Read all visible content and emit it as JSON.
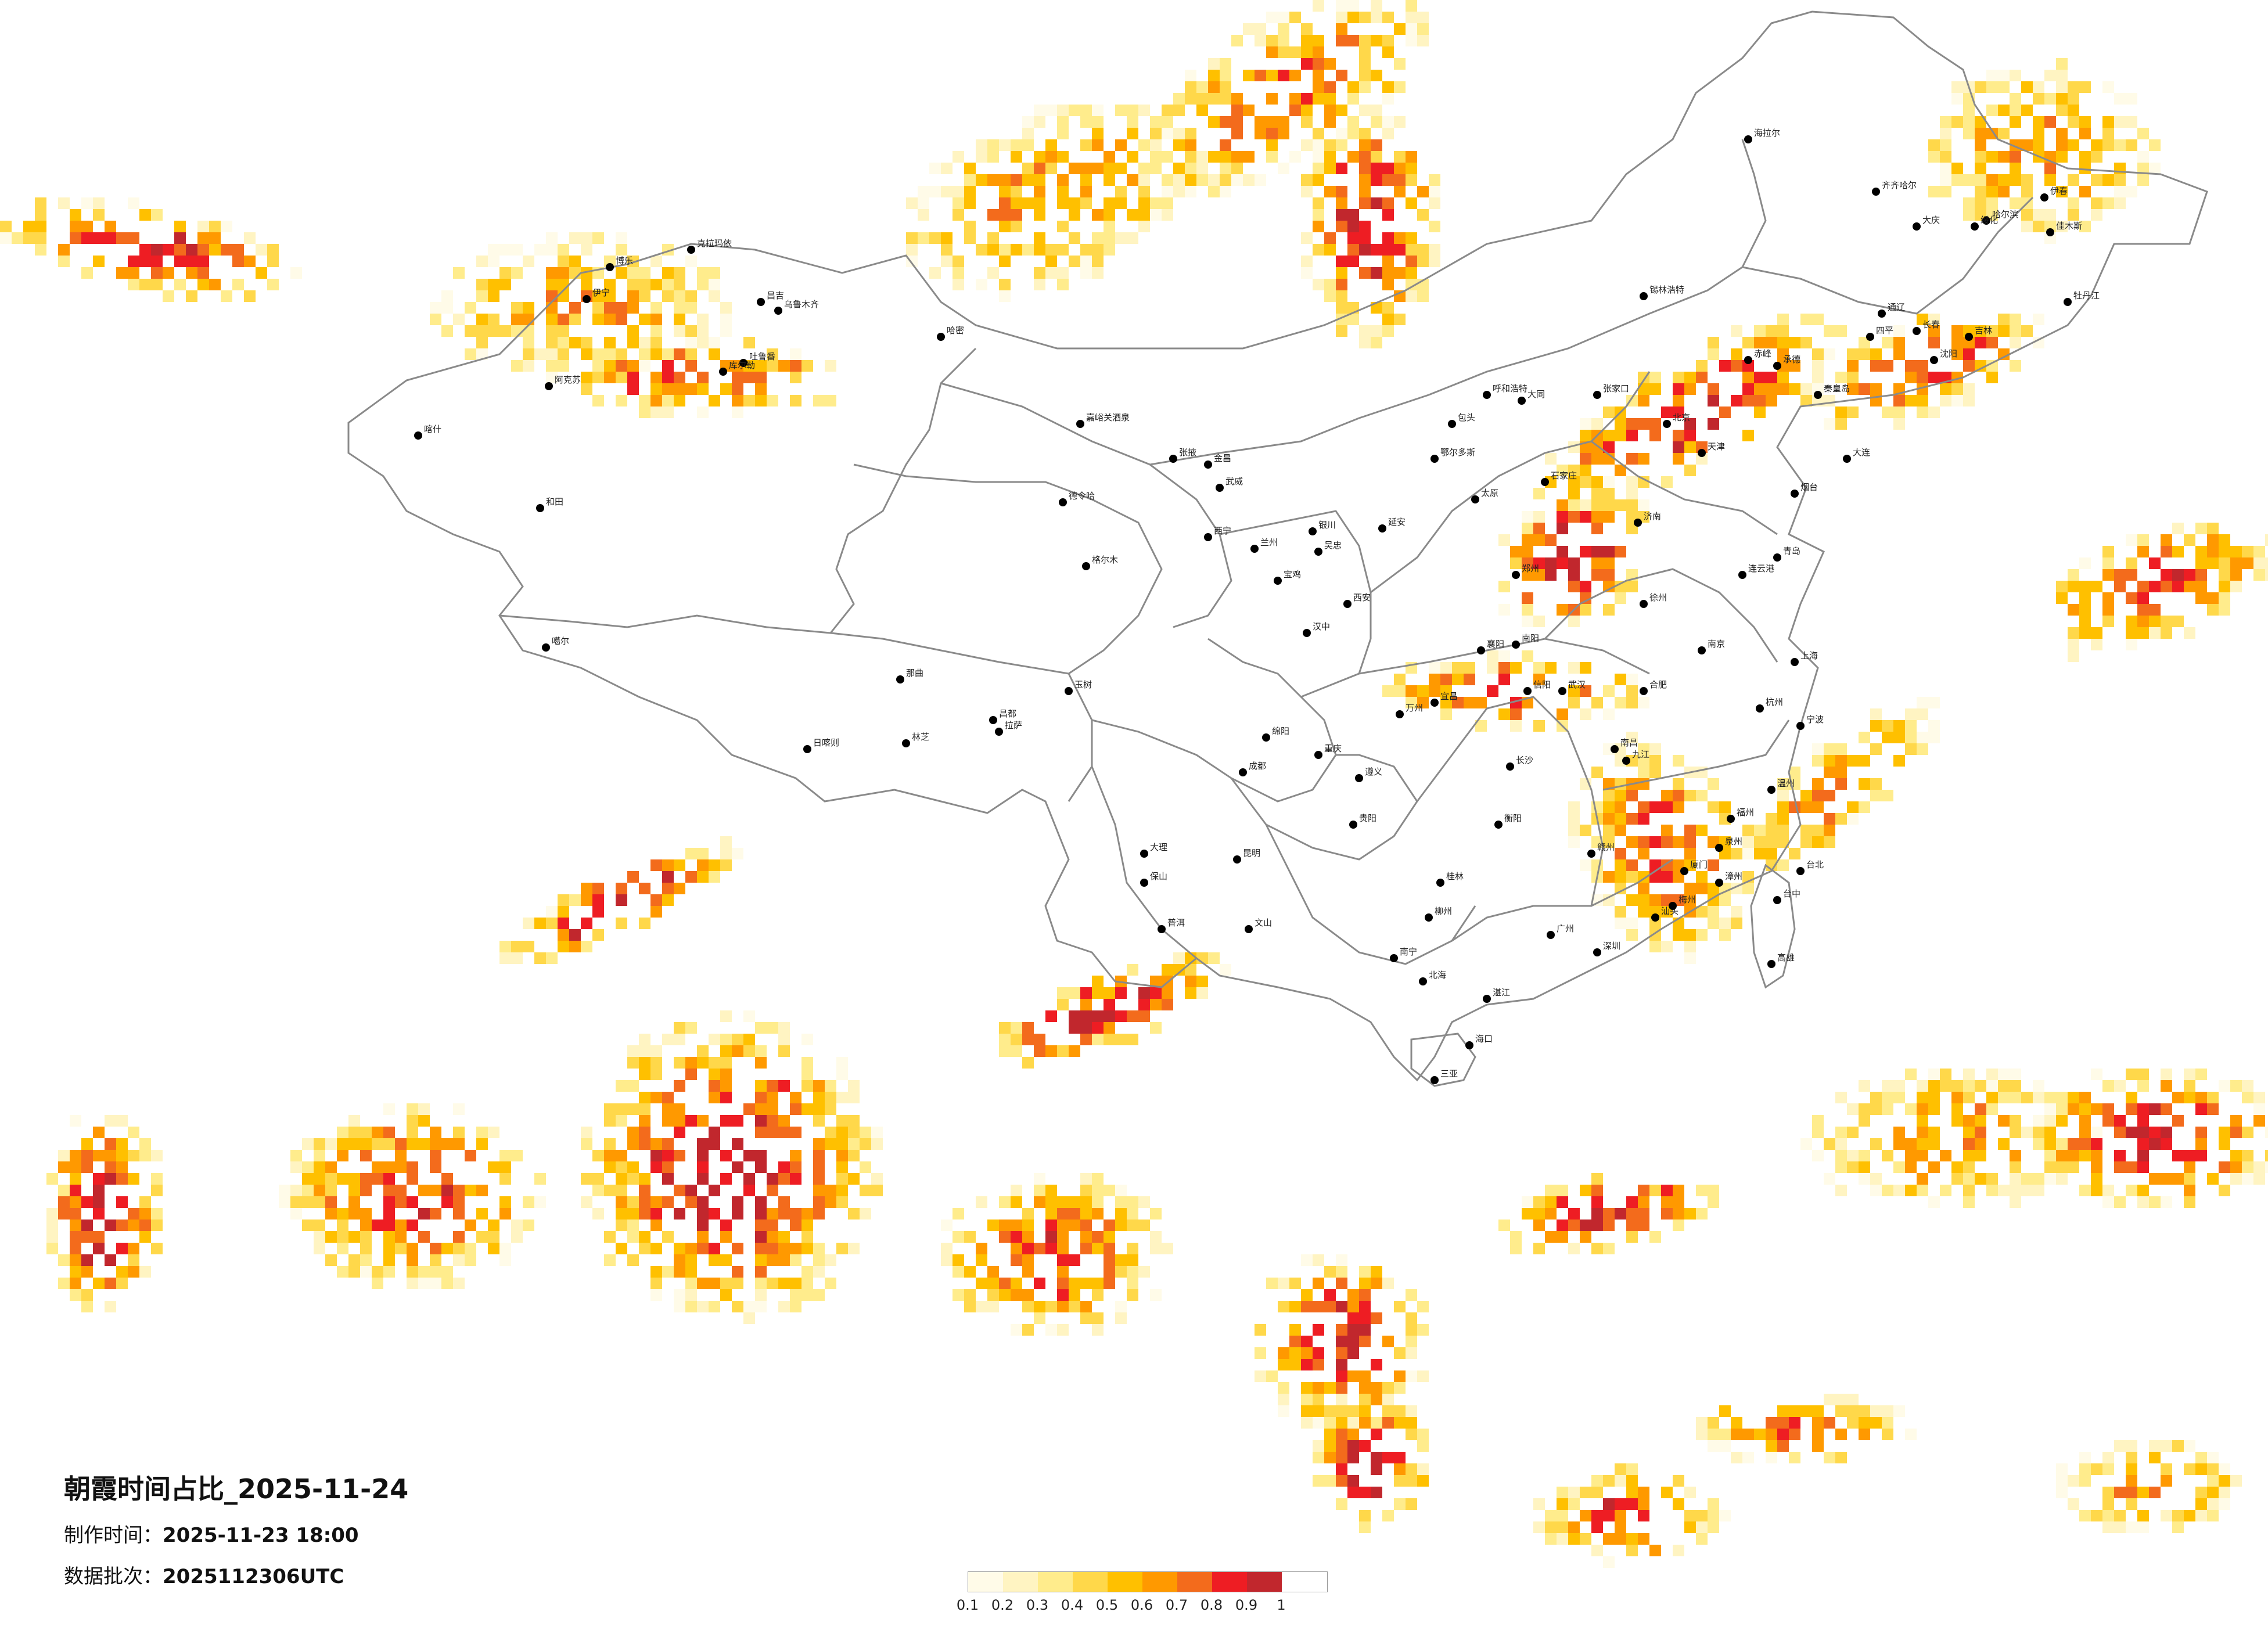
{
  "header": {
    "title": "朝霞时间占比_2025-11-24",
    "made_label": "制作时间：",
    "made_value": "2025-11-23 18:00",
    "batch_label": "数据批次：",
    "batch_value": "2025112306UTC"
  },
  "legend": {
    "colors": [
      "#fffbe8",
      "#fff4c2",
      "#ffec8c",
      "#ffd84a",
      "#ffc000",
      "#ff9900",
      "#f36b1c",
      "#ee1d23",
      "#c1272d"
    ],
    "ticks": [
      "0.1",
      "0.2",
      "0.3",
      "0.4",
      "0.5",
      "0.6",
      "0.7",
      "0.8",
      "0.9",
      "1"
    ]
  },
  "cities": [
    {
      "name": "克拉玛依"
    },
    {
      "name": "博乐"
    },
    {
      "name": "伊宁"
    },
    {
      "name": "昌吉"
    },
    {
      "name": "乌鲁木齐"
    },
    {
      "name": "吐鲁番"
    },
    {
      "name": "哈密"
    },
    {
      "name": "库尔勒"
    },
    {
      "name": "阿克苏"
    },
    {
      "name": "喀什"
    },
    {
      "name": "和田"
    },
    {
      "name": "嘉峪关酒泉"
    },
    {
      "name": "张掖"
    },
    {
      "name": "金昌"
    },
    {
      "name": "武威"
    },
    {
      "name": "德令哈"
    },
    {
      "name": "西宁"
    },
    {
      "name": "兰州"
    },
    {
      "name": "银川"
    },
    {
      "name": "吴忠"
    },
    {
      "name": "格尔木"
    },
    {
      "name": "玉树"
    },
    {
      "name": "那曲"
    },
    {
      "name": "拉萨"
    },
    {
      "name": "日喀则"
    },
    {
      "name": "林芝"
    },
    {
      "name": "昌都"
    },
    {
      "name": "噶尔"
    },
    {
      "name": "呼和浩特"
    },
    {
      "name": "包头"
    },
    {
      "name": "鄂尔多斯"
    },
    {
      "name": "锡林浩特"
    },
    {
      "name": "张家口"
    },
    {
      "name": "北京"
    },
    {
      "name": "天津"
    },
    {
      "name": "石家庄"
    },
    {
      "name": "太原"
    },
    {
      "name": "大同"
    },
    {
      "name": "济南"
    },
    {
      "name": "青岛"
    },
    {
      "name": "郑州"
    },
    {
      "name": "西安"
    },
    {
      "name": "延安"
    },
    {
      "name": "宝鸡"
    },
    {
      "name": "汉中"
    },
    {
      "name": "武汉"
    },
    {
      "name": "襄阳"
    },
    {
      "name": "宜昌"
    },
    {
      "name": "南京"
    },
    {
      "name": "合肥"
    },
    {
      "name": "上海"
    },
    {
      "name": "杭州"
    },
    {
      "name": "宁波"
    },
    {
      "name": "温州"
    },
    {
      "name": "福州"
    },
    {
      "name": "厦门"
    },
    {
      "name": "南昌"
    },
    {
      "name": "长沙"
    },
    {
      "name": "衡阳"
    },
    {
      "name": "贵阳"
    },
    {
      "name": "遵义"
    },
    {
      "name": "昆明"
    },
    {
      "name": "大理"
    },
    {
      "name": "保山"
    },
    {
      "name": "普洱"
    },
    {
      "name": "文山"
    },
    {
      "name": "成都"
    },
    {
      "name": "绵阳"
    },
    {
      "name": "重庆"
    },
    {
      "name": "万州"
    },
    {
      "name": "南宁"
    },
    {
      "name": "桂林"
    },
    {
      "name": "柳州"
    },
    {
      "name": "北海"
    },
    {
      "name": "广州"
    },
    {
      "name": "深圳"
    },
    {
      "name": "汕头"
    },
    {
      "name": "湛江"
    },
    {
      "name": "海口"
    },
    {
      "name": "三亚"
    },
    {
      "name": "台北"
    },
    {
      "name": "台中"
    },
    {
      "name": "高雄"
    },
    {
      "name": "沈阳"
    },
    {
      "name": "大连"
    },
    {
      "name": "长春"
    },
    {
      "name": "吉林"
    },
    {
      "name": "哈尔滨"
    },
    {
      "name": "齐齐哈尔"
    },
    {
      "name": "大庆"
    },
    {
      "name": "牡丹江"
    },
    {
      "name": "佳木斯"
    },
    {
      "name": "海拉尔"
    },
    {
      "name": "伊春"
    },
    {
      "name": "绥化"
    },
    {
      "name": "四平"
    },
    {
      "name": "通辽"
    },
    {
      "name": "赤峰"
    },
    {
      "name": "承德"
    },
    {
      "name": "秦皇岛"
    },
    {
      "name": "烟台"
    },
    {
      "name": "徐州"
    },
    {
      "name": "连云港"
    },
    {
      "name": "南阳"
    },
    {
      "name": "信阳"
    },
    {
      "name": "九江"
    },
    {
      "name": "赣州"
    },
    {
      "name": "泉州"
    },
    {
      "name": "漳州"
    },
    {
      "name": "梅州"
    }
  ]
}
